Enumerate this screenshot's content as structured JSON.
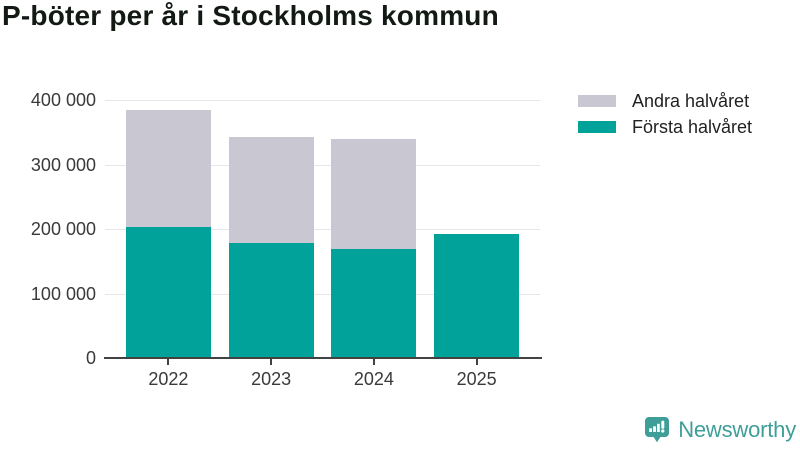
{
  "title": "P-böter per år i Stockholms kommun",
  "legend": {
    "items": [
      {
        "label": "Andra halvåret",
        "color": "#c9c8d2"
      },
      {
        "label": "Första halvåret",
        "color": "#00a29a"
      }
    ]
  },
  "chart_data": {
    "type": "bar",
    "stacked": true,
    "title": "P-böter per år i Stockholms kommun",
    "categories": [
      "2022",
      "2023",
      "2024",
      "2025"
    ],
    "series": [
      {
        "name": "Första halvåret",
        "color": "#00a29a",
        "values": [
          203000,
          179000,
          169000,
          192000
        ]
      },
      {
        "name": "Andra halvåret",
        "color": "#c9c8d2",
        "values": [
          181000,
          163000,
          170000,
          0
        ]
      }
    ],
    "xlabel": "",
    "ylabel": "",
    "ylim": [
      0,
      400000
    ],
    "yticks": [
      0,
      100000,
      200000,
      300000,
      400000
    ],
    "ytick_labels": [
      "0",
      "100 000",
      "200 000",
      "300 000",
      "400 000"
    ],
    "grid": true,
    "legend_position": "top-right"
  },
  "branding": {
    "logo_text": "Newsworthy",
    "logo_icon": "newsworthy-speech-bubble-barchart-icon",
    "color": "#3f9e98"
  },
  "colors": {
    "first_half": "#00a29a",
    "second_half": "#c9c8d2",
    "gridline": "#e7e7ea",
    "axis": "#424242",
    "title_text": "#131a14",
    "tick_text": "#3a3a3a"
  }
}
